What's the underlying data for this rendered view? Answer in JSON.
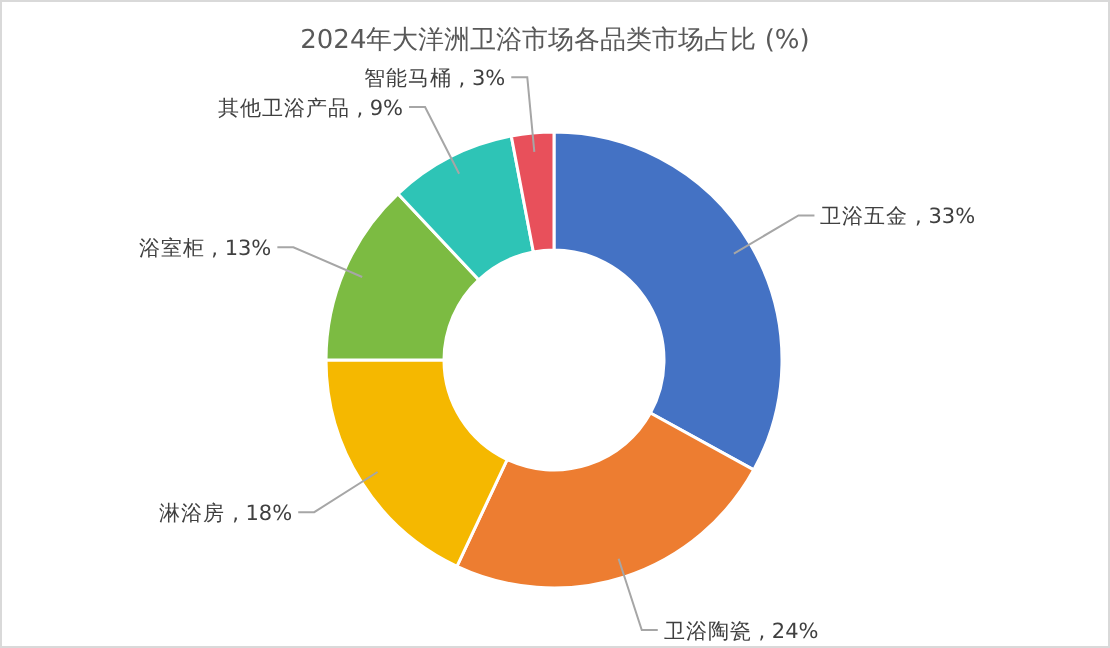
{
  "chart_data": {
    "type": "donut",
    "title": "2024年大洋洲卫浴市场各品类市场占比 (%)",
    "categories": [
      "卫浴五金",
      "卫浴陶瓷",
      "淋浴房",
      "浴室柜",
      "其他卫浴产品",
      "智能马桶"
    ],
    "values": [
      33,
      24,
      18,
      13,
      9,
      3
    ],
    "colors": [
      "#4472c4",
      "#ed7d31",
      "#f5b800",
      "#7cbb42",
      "#2ec4b6",
      "#e8505b"
    ],
    "value_labels": [
      "33%",
      "24%",
      "18%",
      "13%",
      "9%",
      "3%"
    ]
  }
}
